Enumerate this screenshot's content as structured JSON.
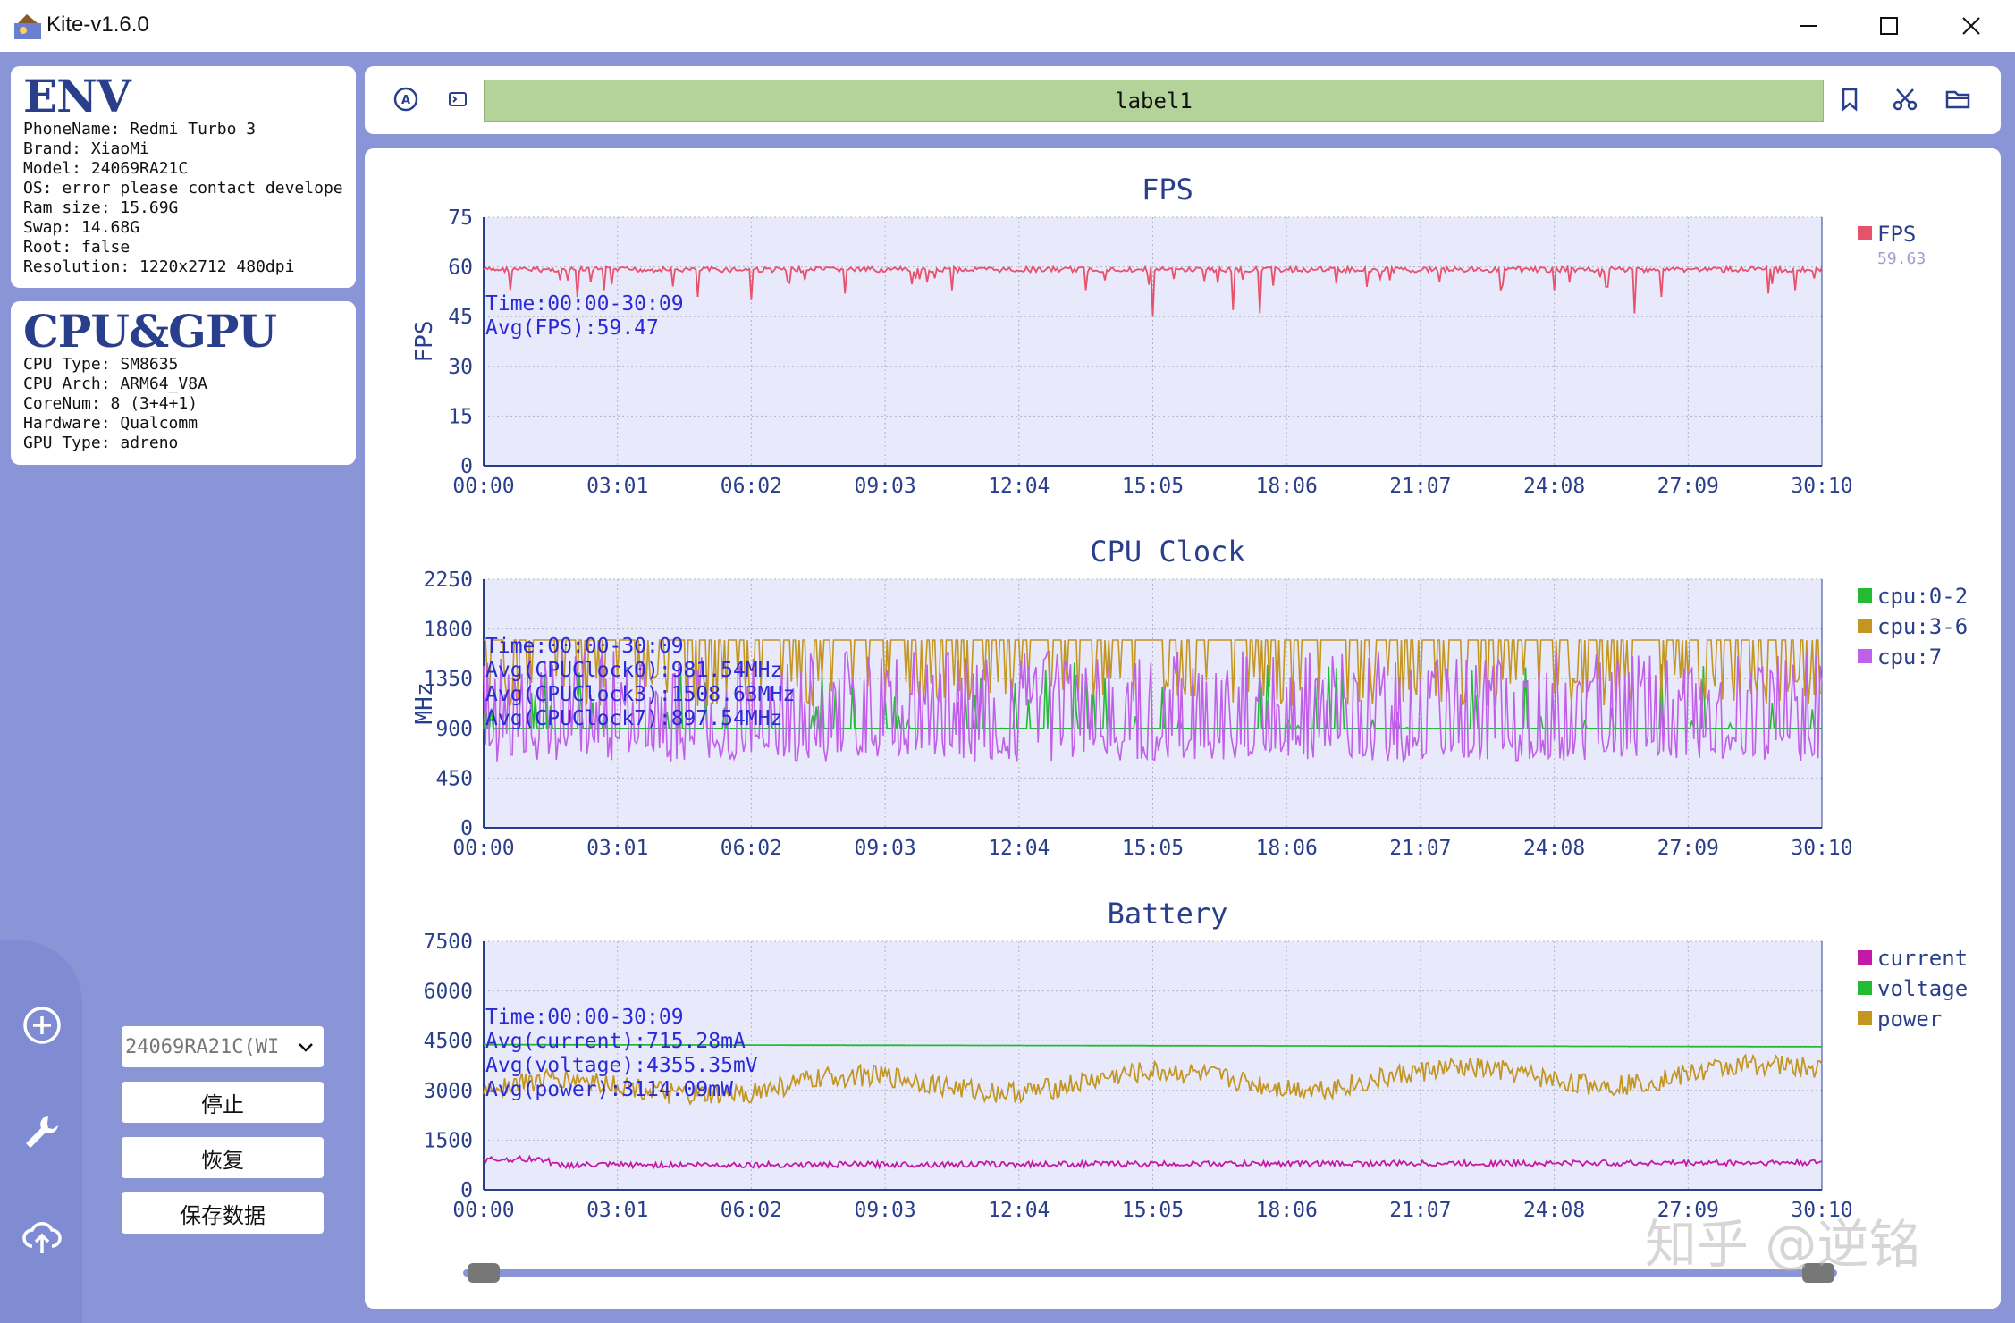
{
  "window": {
    "title": "Kite-v1.6.0"
  },
  "env": {
    "title": "ENV",
    "lines": [
      "PhoneName: Redmi Turbo 3",
      "Brand: XiaoMi",
      "Model: 24069RA21C",
      "OS: error please contact develope",
      "Ram size: 15.69G",
      "Swap: 14.68G",
      "Root: false",
      "Resolution: 1220x2712 480dpi"
    ]
  },
  "cpu_gpu": {
    "title": "CPU&GPU",
    "lines": [
      "CPU Type: SM8635",
      "CPU Arch: ARM64_V8A",
      "CoreNum: 8 (3+4+1)",
      "Hardware: Qualcomm",
      "GPU Type: adreno"
    ]
  },
  "controls": {
    "device_select": "24069RA21C(WI",
    "stop_label": "停止",
    "resume_label": "恢复",
    "save_label": "保存数据"
  },
  "toolbar": {
    "label_text": "label1"
  },
  "watermark": "知乎 @逆铭",
  "x_ticks": [
    "00:00",
    "03:01",
    "06:02",
    "09:03",
    "12:04",
    "15:05",
    "18:06",
    "21:07",
    "24:08",
    "27:09",
    "30:10"
  ],
  "chart_data": [
    {
      "type": "line",
      "title": "FPS",
      "ylabel": "FPS",
      "ylim": [
        0,
        75
      ],
      "yticks": [
        "75",
        "60",
        "45",
        "30",
        "15",
        "0"
      ],
      "series": [
        {
          "name": "FPS",
          "color": "#e8516b",
          "level": 60,
          "dips": [
            [
              0.02,
              53
            ],
            [
              0.07,
              51
            ],
            [
              0.09,
              53
            ],
            [
              0.16,
              51
            ],
            [
              0.2,
              50
            ],
            [
              0.27,
              52
            ],
            [
              0.35,
              53
            ],
            [
              0.45,
              53
            ],
            [
              0.5,
              45
            ],
            [
              0.56,
              47
            ],
            [
              0.58,
              46
            ],
            [
              0.66,
              54
            ],
            [
              0.76,
              53
            ],
            [
              0.8,
              53
            ],
            [
              0.84,
              54
            ],
            [
              0.86,
              46
            ],
            [
              0.88,
              51
            ],
            [
              0.96,
              52
            ],
            [
              0.98,
              53
            ]
          ]
        }
      ],
      "legend_value": "59.63",
      "annotations": [
        "Time:00:00-30:09",
        "Avg(FPS):59.47"
      ]
    },
    {
      "type": "line",
      "title": "CPU Clock",
      "ylabel": "MHz",
      "ylim": [
        0,
        2250
      ],
      "yticks": [
        "2250",
        "1800",
        "1350",
        "900",
        "450",
        "0"
      ],
      "series": [
        {
          "name": "cpu:0-2",
          "color": "#22bb33",
          "base": 900
        },
        {
          "name": "cpu:3-6",
          "color": "#c39622",
          "base": 1700
        },
        {
          "name": "cpu:7",
          "color": "#c060e8",
          "base": 650
        }
      ],
      "annotations": [
        "Time:00:00-30:09",
        "Avg(CPUClock0):981.54MHz",
        "Avg(CPUClock3):1508.63MHz",
        "Avg(CPUClock7):897.54MHz"
      ]
    },
    {
      "type": "line",
      "title": "Battery",
      "ylabel": "",
      "ylim": [
        0,
        7500
      ],
      "yticks": [
        "7500",
        "6000",
        "4500",
        "3000",
        "1500",
        "0"
      ],
      "series": [
        {
          "name": "current",
          "color": "#c21aa6",
          "base": 715
        },
        {
          "name": "voltage",
          "color": "#22bb33",
          "base": 4355
        },
        {
          "name": "power",
          "color": "#c39622",
          "base": 3114
        }
      ],
      "annotations": [
        "Time:00:00-30:09",
        "Avg(current):715.28mA",
        "Avg(voltage):4355.35mV",
        "Avg(power):3114.09mW"
      ]
    }
  ]
}
